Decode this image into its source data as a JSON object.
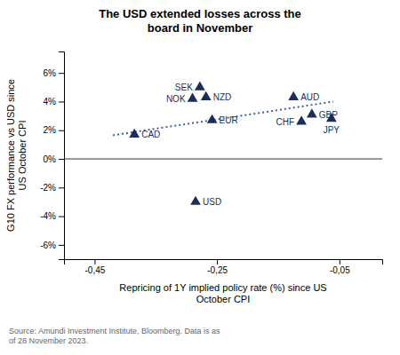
{
  "chart_data": {
    "type": "scatter",
    "title": "The USD extended losses across the\nboard in November",
    "x_label": "Repricing of 1Y implied policy rate (%) since US\nOctober CPI",
    "y_label": "G10 FX performance vs USD since\nUS October CPI",
    "source": "Source: Amundi Investment Institute, Bloomberg. Data is as\nof 28 November 2023.",
    "xlim": [
      -0.5,
      0.02
    ],
    "ylim": [
      -7.0,
      7.5
    ],
    "xticks": [
      {
        "value": -0.45,
        "label": "-0,45"
      },
      {
        "value": -0.25,
        "label": "-0,25"
      },
      {
        "value": -0.05,
        "label": "-0,05"
      }
    ],
    "yticks": [
      {
        "value": -6,
        "label": "-6%"
      },
      {
        "value": -4,
        "label": "-4%"
      },
      {
        "value": -2,
        "label": "-2%"
      },
      {
        "value": 0,
        "label": "0%"
      },
      {
        "value": 2,
        "label": "2%"
      },
      {
        "value": 4,
        "label": "4%"
      },
      {
        "value": 6,
        "label": "6%"
      }
    ],
    "hlines": [
      0
    ],
    "series": [
      {
        "type": "scatter",
        "color": "#1a2e5a",
        "marker": "triangle",
        "x": [
          -0.385,
          -0.29,
          -0.278,
          -0.268,
          -0.258,
          -0.285,
          -0.125,
          -0.112,
          -0.095,
          -0.063
        ],
        "values": [
          1.7,
          4.2,
          5.0,
          4.3,
          2.7,
          -3.0,
          4.3,
          2.6,
          3.1,
          2.8
        ],
        "labels": [
          "CAD",
          "NOK",
          "SEK",
          "NZD",
          "EUR",
          "USD",
          "AUD",
          "CHF",
          "GBP",
          "JPY"
        ]
      },
      {
        "type": "line",
        "color": "#4060a0",
        "line_style": "dotted",
        "x": [
          -0.42,
          -0.06
        ],
        "values": [
          1.65,
          4.0
        ]
      }
    ]
  }
}
